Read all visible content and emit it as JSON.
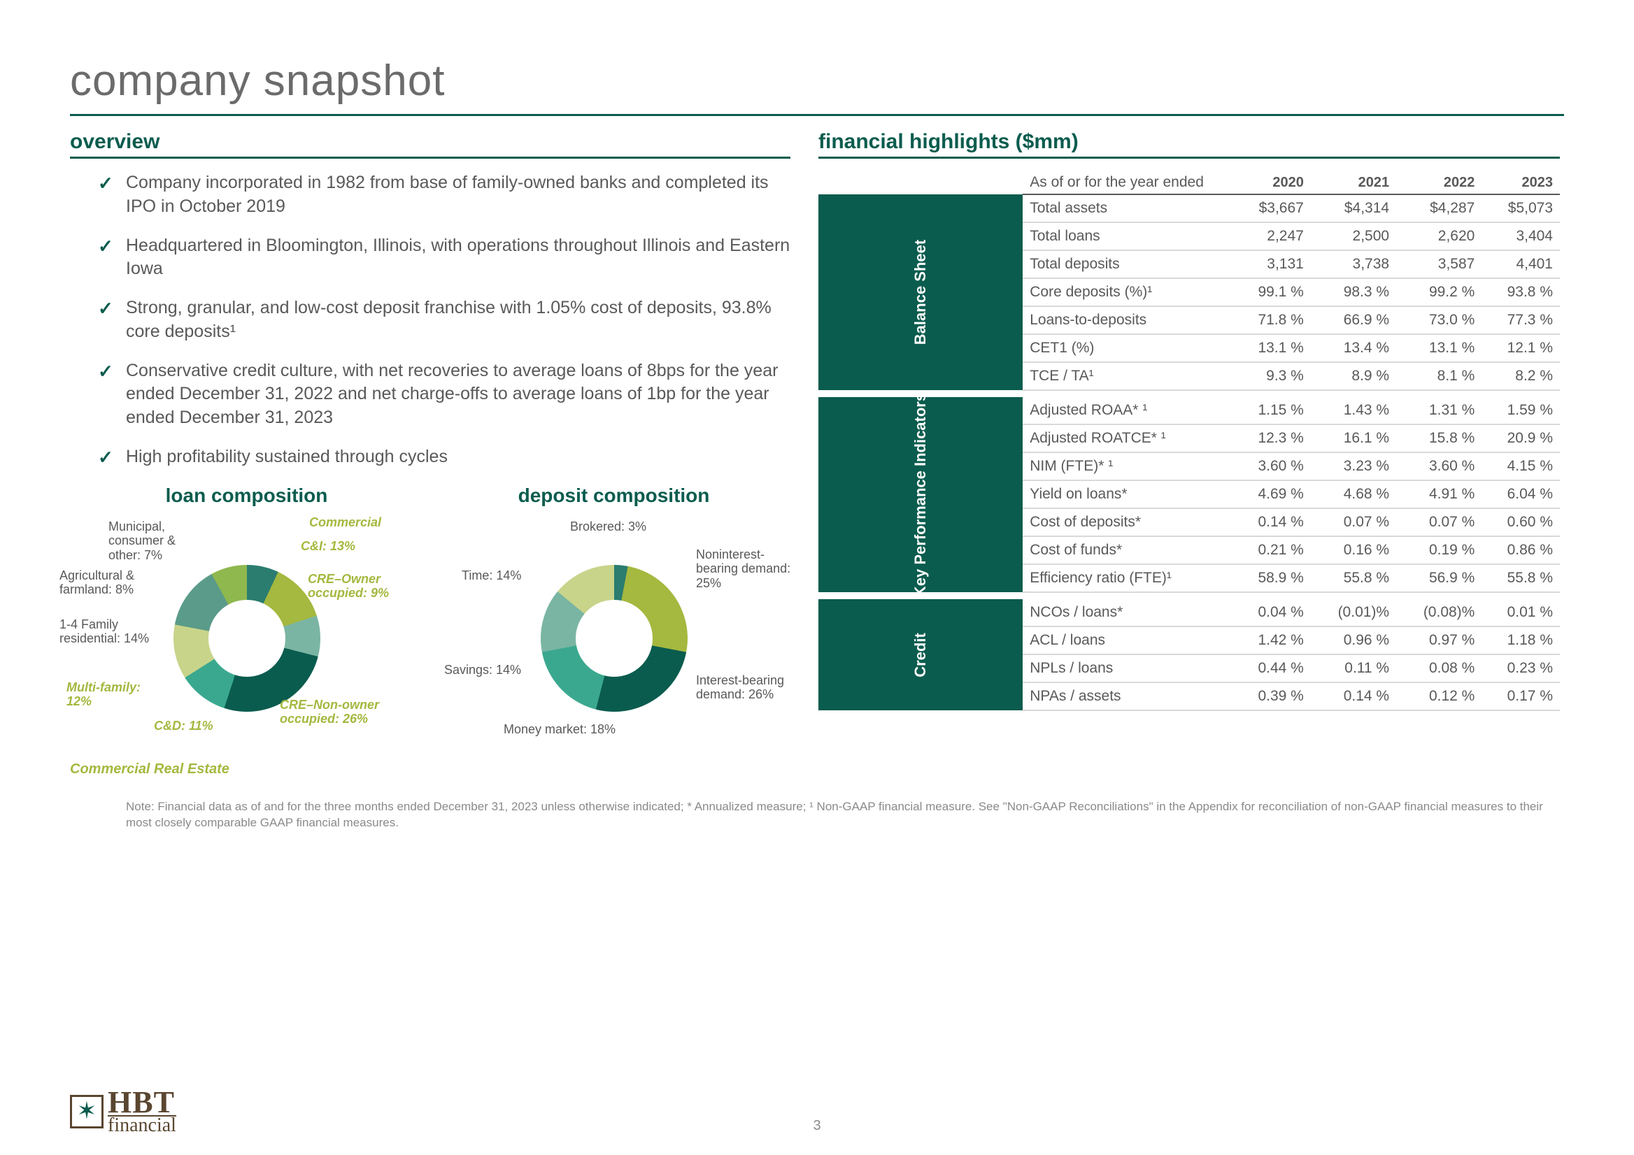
{
  "page_title": "company snapshot",
  "page_number": "3",
  "overview": {
    "header": "overview",
    "bullets": [
      "Company incorporated in 1982 from base of family-owned banks and completed its IPO in October 2019",
      "Headquartered in Bloomington, Illinois, with operations throughout Illinois and Eastern Iowa",
      "Strong, granular, and low-cost deposit franchise with 1.05% cost of deposits, 93.8% core deposits¹",
      "Conservative credit culture, with net recoveries to average loans of 8bps for the year ended December 31, 2022 and net charge-offs to average loans of 1bp for the year ended December 31, 2023",
      "High profitability sustained through cycles"
    ]
  },
  "loan_chart": {
    "title": "loan composition",
    "type": "donut",
    "category1": "Commercial",
    "category2": "Commercial Real Estate",
    "slices": [
      {
        "label": "Municipal, consumer & other: 7%",
        "value": 7,
        "color": "#2a7d6f"
      },
      {
        "label": "C&I: 13%",
        "value": 13,
        "color": "#a5b83f",
        "accent": true
      },
      {
        "label": "CRE–Owner occupied: 9%",
        "value": 9,
        "color": "#7ab5a3",
        "accent": true
      },
      {
        "label": "CRE–Non-owner occupied: 26%",
        "value": 26,
        "color": "#0a5c4e",
        "accent": true
      },
      {
        "label": "C&D: 11%",
        "value": 11,
        "color": "#3aa88f",
        "accent": true
      },
      {
        "label": "Multi-family: 12%",
        "value": 12,
        "color": "#c8d48a",
        "accent": true
      },
      {
        "label": "1-4 Family residential: 14%",
        "value": 14,
        "color": "#5a9b89"
      },
      {
        "label": "Agricultural & farmland: 8%",
        "value": 8,
        "color": "#8fb84f"
      }
    ]
  },
  "deposit_chart": {
    "title": "deposit composition",
    "type": "donut",
    "slices": [
      {
        "label": "Brokered: 3%",
        "value": 3,
        "color": "#2a7d6f"
      },
      {
        "label": "Noninterest-bearing demand: 25%",
        "value": 25,
        "color": "#a5b83f"
      },
      {
        "label": "Interest-bearing demand: 26%",
        "value": 26,
        "color": "#0a5c4e"
      },
      {
        "label": "Money market: 18%",
        "value": 18,
        "color": "#3aa88f"
      },
      {
        "label": "Savings: 14%",
        "value": 14,
        "color": "#7ab5a3"
      },
      {
        "label": "Time: 14%",
        "value": 14,
        "color": "#c8d48a"
      }
    ]
  },
  "financial": {
    "header": "financial highlights ($mm)",
    "columns_label": "As of or for the year ended",
    "years": [
      "2020",
      "2021",
      "2022",
      "2023"
    ],
    "sections": [
      {
        "name": "Balance Sheet",
        "rows": [
          {
            "label": "Total assets",
            "v": [
              "$3,667",
              "$4,314",
              "$4,287",
              "$5,073"
            ]
          },
          {
            "label": "Total loans",
            "v": [
              "2,247",
              "2,500",
              "2,620",
              "3,404"
            ]
          },
          {
            "label": "Total deposits",
            "v": [
              "3,131",
              "3,738",
              "3,587",
              "4,401"
            ]
          },
          {
            "label": "Core deposits (%)¹",
            "v": [
              "99.1 %",
              "98.3 %",
              "99.2 %",
              "93.8 %"
            ]
          },
          {
            "label": "Loans-to-deposits",
            "v": [
              "71.8 %",
              "66.9 %",
              "73.0 %",
              "77.3 %"
            ]
          },
          {
            "label": "CET1 (%)",
            "v": [
              "13.1 %",
              "13.4 %",
              "13.1 %",
              "12.1 %"
            ]
          },
          {
            "label": "TCE / TA¹",
            "v": [
              "9.3 %",
              "8.9 %",
              "8.1 %",
              "8.2 %"
            ]
          }
        ]
      },
      {
        "name": "Key Performance Indicators",
        "rows": [
          {
            "label": "Adjusted ROAA* ¹",
            "v": [
              "1.15 %",
              "1.43 %",
              "1.31 %",
              "1.59 %"
            ]
          },
          {
            "label": "Adjusted ROATCE* ¹",
            "v": [
              "12.3 %",
              "16.1 %",
              "15.8 %",
              "20.9 %"
            ]
          },
          {
            "label": "NIM (FTE)* ¹",
            "v": [
              "3.60 %",
              "3.23 %",
              "3.60 %",
              "4.15 %"
            ]
          },
          {
            "label": "Yield on loans*",
            "v": [
              "4.69 %",
              "4.68 %",
              "4.91 %",
              "6.04 %"
            ]
          },
          {
            "label": "Cost of deposits*",
            "v": [
              "0.14 %",
              "0.07 %",
              "0.07 %",
              "0.60 %"
            ]
          },
          {
            "label": "Cost of funds*",
            "v": [
              "0.21 %",
              "0.16 %",
              "0.19 %",
              "0.86 %"
            ]
          },
          {
            "label": "Efficiency ratio (FTE)¹",
            "v": [
              "58.9 %",
              "55.8 %",
              "56.9 %",
              "55.8 %"
            ]
          }
        ]
      },
      {
        "name": "Credit",
        "rows": [
          {
            "label": "NCOs / loans*",
            "v": [
              "0.04 %",
              "(0.01)%",
              "(0.08)%",
              "0.01 %"
            ]
          },
          {
            "label": "ACL / loans",
            "v": [
              "1.42 %",
              "0.96 %",
              "0.97 %",
              "1.18 %"
            ]
          },
          {
            "label": "NPLs / loans",
            "v": [
              "0.44 %",
              "0.11 %",
              "0.08 %",
              "0.23 %"
            ]
          },
          {
            "label": "NPAs / assets",
            "v": [
              "0.39 %",
              "0.14 %",
              "0.12 %",
              "0.17 %"
            ]
          }
        ]
      }
    ]
  },
  "footnote": "Note: Financial data as of and for the three months ended December 31, 2023 unless otherwise indicated; * Annualized measure; ¹ Non-GAAP financial measure. See \"Non-GAAP Reconciliations\" in the Appendix for reconciliation of non-GAAP financial measures to their most closely comparable GAAP financial measures.",
  "logo": {
    "top": "HBT",
    "bottom": "financial"
  }
}
